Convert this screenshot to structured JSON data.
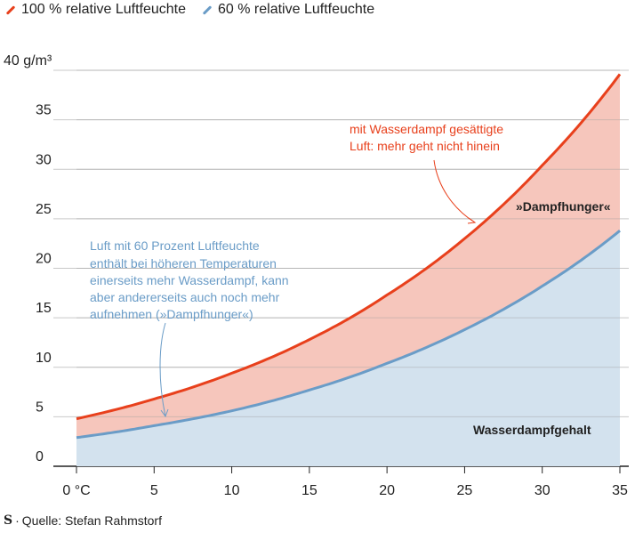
{
  "legend": {
    "items": [
      {
        "label": "100 % relative Luftfeuchte",
        "color": "#e8401c"
      },
      {
        "label": "60 % relative Luftfeuchte",
        "color": "#6a9cc7"
      }
    ]
  },
  "source": {
    "logo": "S",
    "text": "Quelle: Stefan Rahmstorf"
  },
  "annotations": {
    "saturated_line1": "mit Wasserdampf gesättigte",
    "saturated_line2": "Luft: mehr geht nicht hinein",
    "dampfhunger": "»Dampfhunger«",
    "wasserdampfgehalt": "Wasserdampfgehalt",
    "blue_lines": [
      "Luft mit 60 Prozent Luftfeuchte",
      "enthält bei höheren Temperaturen",
      "einerseits mehr Wasserdampf, kann",
      "aber andererseits auch noch mehr",
      "aufnehmen (»Dampfhunger«)"
    ]
  },
  "chart_data": {
    "type": "area",
    "x_ticks": [
      "0 °C",
      "5",
      "10",
      "15",
      "20",
      "25",
      "30",
      "35"
    ],
    "y_ticks": [
      "0",
      "5",
      "10",
      "15",
      "20",
      "25",
      "30",
      "35",
      "40 g/m³"
    ],
    "xlim": [
      0,
      35
    ],
    "ylim": [
      0,
      40
    ],
    "x": [
      0,
      5,
      10,
      15,
      20,
      25,
      30,
      35
    ],
    "series": [
      {
        "name": "100 % relative Luftfeuchte",
        "color": "#e8401c",
        "fill": "#f6c6bc",
        "values": [
          4.8,
          6.8,
          9.4,
          12.8,
          17.3,
          23.0,
          30.4,
          39.6
        ]
      },
      {
        "name": "60 % relative Luftfeuchte",
        "color": "#6a9cc7",
        "fill": "#d3e2ee",
        "values": [
          2.9,
          4.1,
          5.6,
          7.7,
          10.4,
          13.8,
          18.2,
          23.8
        ]
      }
    ],
    "grid": true
  }
}
